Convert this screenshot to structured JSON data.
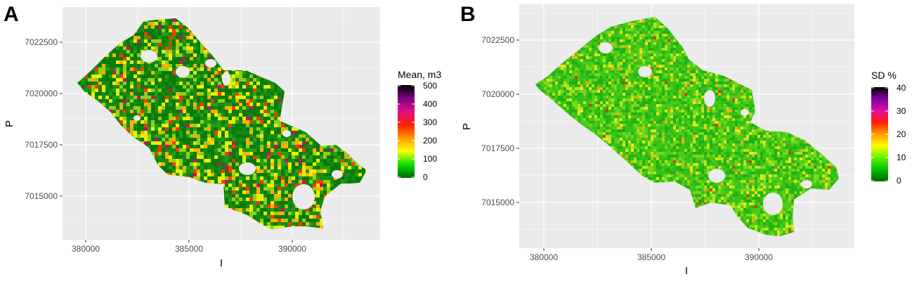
{
  "panels": [
    {
      "letter": "A",
      "x_label": "I",
      "y_label": "P",
      "x_ticks": [
        "380000",
        "385000",
        "390000"
      ],
      "y_ticks": [
        "7022500",
        "7020000",
        "7017500",
        "7015000"
      ],
      "legend": {
        "title": "Mean, m3",
        "labels": [
          "500",
          "400",
          "300",
          "200",
          "100",
          "0"
        ],
        "colors": [
          "#000000",
          "#7a0080",
          "#e0108a",
          "#ff2000",
          "#ff9900",
          "#ffff00",
          "#00e000",
          "#006600"
        ]
      },
      "map_palette": [
        "#0a7a0a",
        "#168a16",
        "#22a012",
        "#8fd016",
        "#e8f000",
        "#ffb000",
        "#ff3a00",
        "#c8106a"
      ]
    },
    {
      "letter": "B",
      "x_label": "I",
      "y_label": "P",
      "x_ticks": [
        "380000",
        "385000",
        "390000"
      ],
      "y_ticks": [
        "7022500",
        "7020000",
        "7017500",
        "7015000"
      ],
      "legend": {
        "title": "SD %",
        "labels": [
          "40",
          "30",
          "20",
          "10",
          "0"
        ],
        "colors": [
          "#000000",
          "#8000a0",
          "#e010a0",
          "#ff2000",
          "#ffa000",
          "#ffff00",
          "#60f000",
          "#00c000",
          "#006600"
        ]
      },
      "map_palette": [
        "#22b014",
        "#33c01a",
        "#4ccc16",
        "#7ad81a",
        "#b8e41a",
        "#e8e81a",
        "#f0b010",
        "#d04010"
      ]
    }
  ]
}
